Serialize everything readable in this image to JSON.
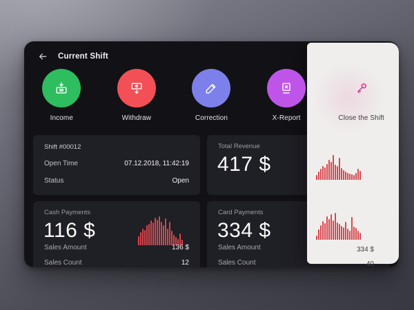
{
  "header": {
    "title": "Current Shift"
  },
  "actions": [
    {
      "label": "Income",
      "color": "#2ebd5f"
    },
    {
      "label": "Withdraw",
      "color": "#f25056"
    },
    {
      "label": "Correction",
      "color": "#7d80ea"
    },
    {
      "label": "X-Report",
      "color": "#bf55e8"
    },
    {
      "label": "Close the Shift",
      "color": "#e01e86"
    }
  ],
  "shift_card": {
    "title": "Shift #00012",
    "rows": [
      {
        "label": "Open Time",
        "value": "07.12.2018, 11:42:19"
      },
      {
        "label": "Status",
        "value": "Open"
      }
    ]
  },
  "total_revenue": {
    "label": "Total Revenue",
    "value": "417 $"
  },
  "cash_payments": {
    "label": "Cash Payments",
    "value": "116 $",
    "rows": [
      {
        "label": "Sales Amount",
        "value": "136 $"
      },
      {
        "label": "Sales Count",
        "value": "12"
      }
    ]
  },
  "card_payments": {
    "label": "Card Payments",
    "value": "334 $",
    "rows": [
      {
        "label": "Sales Amount",
        "value": "334 $"
      },
      {
        "label": "Sales Count",
        "value": "40"
      }
    ]
  },
  "colors": {
    "bar": "#d8464d",
    "panel": "#efeeec",
    "screen_bg": "#121216"
  },
  "chart_data": [
    {
      "name": "total_revenue_sparkline",
      "type": "bar",
      "color": "#d8464d",
      "ylim": [
        0,
        100
      ],
      "values": [
        20,
        32,
        45,
        55,
        50,
        65,
        80,
        72,
        100,
        62,
        55,
        88,
        48,
        38,
        32,
        28,
        25,
        22,
        20,
        28,
        45,
        35
      ]
    },
    {
      "name": "cash_payments_sparkline",
      "type": "bar",
      "color": "#d8464d",
      "ylim": [
        0,
        100
      ],
      "values": [
        30,
        45,
        58,
        52,
        68,
        75,
        85,
        78,
        95,
        88,
        100,
        82,
        70,
        92,
        58,
        80,
        50,
        35,
        28,
        22,
        40,
        18
      ]
    },
    {
      "name": "card_payments_sparkline",
      "type": "bar",
      "color": "#d8464d",
      "ylim": [
        0,
        100
      ],
      "values": [
        15,
        35,
        50,
        65,
        58,
        80,
        72,
        88,
        66,
        92,
        60,
        55,
        48,
        42,
        62,
        38,
        32,
        78,
        45,
        40,
        30,
        25
      ]
    }
  ]
}
